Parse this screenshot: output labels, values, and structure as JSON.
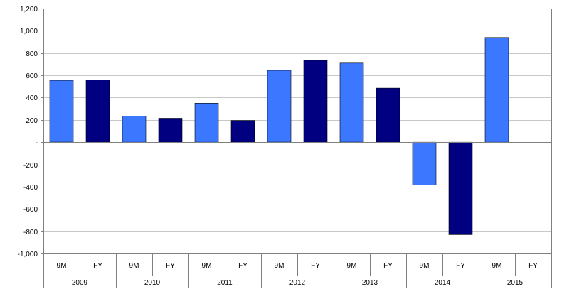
{
  "chart_data": {
    "type": "bar",
    "title": "",
    "xlabel": "",
    "ylabel": "",
    "ylim": [
      -1000,
      1200
    ],
    "y_ticks": [
      1200,
      1000,
      800,
      600,
      400,
      200,
      0,
      -200,
      -400,
      -600,
      -800,
      -1000
    ],
    "y_tick_labels": [
      "1,200",
      "1,000",
      "800",
      "600",
      "400",
      "200",
      "-",
      "-200",
      "-400",
      "-600",
      "-800",
      "-1,000"
    ],
    "grid": "horizontal",
    "legend": "none",
    "years": [
      "2009",
      "2010",
      "2011",
      "2012",
      "2013",
      "2014",
      "2015"
    ],
    "periods": [
      "9M",
      "FY"
    ],
    "categories": [
      "9M",
      "FY",
      "9M",
      "FY",
      "9M",
      "FY",
      "9M",
      "FY",
      "9M",
      "FY",
      "9M",
      "FY",
      "9M",
      "FY"
    ],
    "values": [
      555,
      560,
      235,
      215,
      350,
      195,
      645,
      735,
      710,
      485,
      -385,
      -830,
      940,
      null
    ],
    "colors": {
      "9M": "#3b78ff",
      "FY": "#000080",
      "grid": "#c8c8c8",
      "axis": "#808080"
    }
  }
}
